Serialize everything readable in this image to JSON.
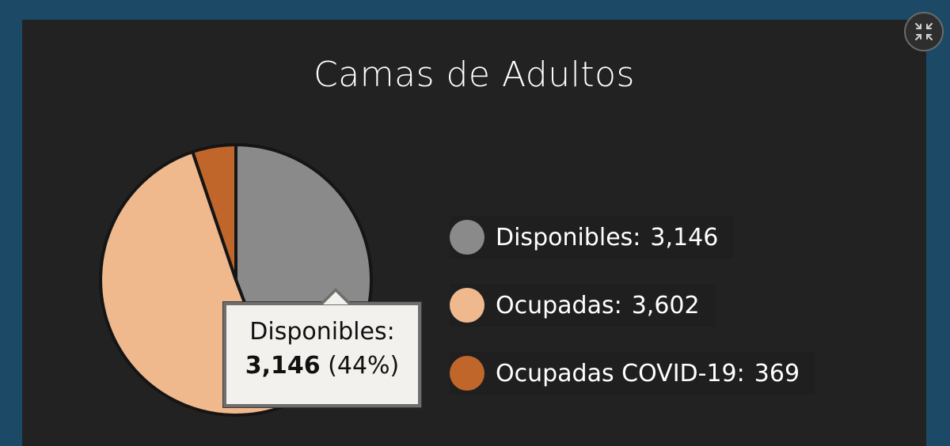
{
  "chart_data": {
    "type": "pie",
    "title": "Camas de Adultos",
    "slices": [
      {
        "label": "Disponibles",
        "value": 3146,
        "display": "3,146",
        "color": "#8a8a8a"
      },
      {
        "label": "Ocupadas",
        "value": 3602,
        "display": "3,602",
        "color": "#efb88d"
      },
      {
        "label": "Ocupadas COVID-19",
        "value": 369,
        "display": "369",
        "color": "#c0662a"
      }
    ],
    "legend_placement": "right",
    "tooltip": {
      "label": "Disponibles:",
      "value": "3,146",
      "percent": "(44%)"
    }
  },
  "colors": {
    "background": "#1b4966",
    "panel": "#222222",
    "slice_border": "#151515"
  },
  "controls": {
    "collapse_icon": "collapse-arrows-icon"
  }
}
